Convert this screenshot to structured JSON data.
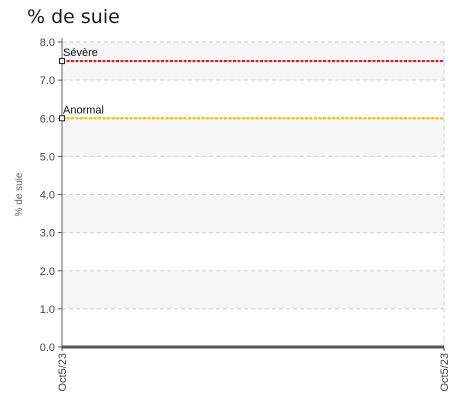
{
  "chart_data": {
    "type": "line",
    "title": "% de suie",
    "ylabel": "% de suie",
    "xlabel": "",
    "ylim": [
      0,
      8
    ],
    "yticks": [
      "0.0",
      "1.0",
      "2.0",
      "3.0",
      "4.0",
      "5.0",
      "6.0",
      "7.0",
      "8.0"
    ],
    "x_categories": [
      "Oct5/23",
      "Oct5/23"
    ],
    "grid": true,
    "reference_lines": [
      {
        "label": "Sévère",
        "value": 7.5,
        "color": "#e8141c"
      },
      {
        "label": "Anormal",
        "value": 6.0,
        "color": "#f2c500"
      }
    ],
    "series": [
      {
        "values": [
          0.0,
          0.0
        ],
        "color": "#555555"
      }
    ]
  }
}
